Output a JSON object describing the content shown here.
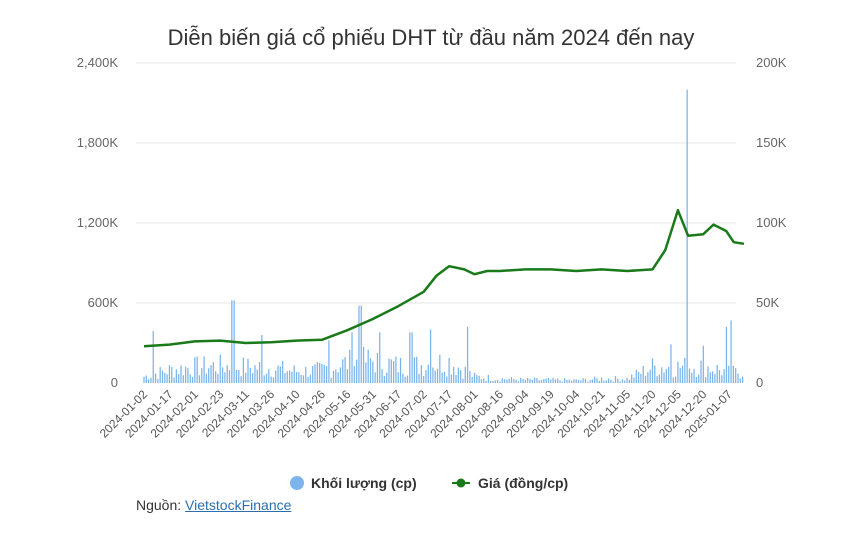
{
  "chart_data": {
    "type": "bar+line",
    "title": "Diễn biến giá cổ phiếu DHT từ đầu năm 2024 đến nay",
    "categories": [
      "2024-01-02",
      "2024-01-17",
      "2024-02-01",
      "2024-02-23",
      "2024-03-11",
      "2024-03-26",
      "2024-04-10",
      "2024-04-26",
      "2024-05-16",
      "2024-05-31",
      "2024-06-17",
      "2024-07-02",
      "2024-07-17",
      "2024-08-01",
      "2024-08-16",
      "2024-09-04",
      "2024-09-19",
      "2024-10-04",
      "2024-10-21",
      "2024-11-05",
      "2024-11-20",
      "2024-12-05",
      "2024-12-20",
      "2025-01-07"
    ],
    "y_left": {
      "ticks": [
        "0",
        "600K",
        "1,200K",
        "1,800K",
        "2,400K"
      ],
      "max": 2400000
    },
    "y_right": {
      "ticks": [
        "0",
        "50K",
        "100K",
        "150K",
        "200K"
      ],
      "max": 200000
    },
    "legend_position": "bottom-center",
    "series": [
      {
        "name": "Khối lượng (cp)",
        "type": "bar",
        "axis": "left",
        "color": "#7cb5ec",
        "anchors": [
          [
            0,
            60000
          ],
          [
            1,
            120000
          ],
          [
            2,
            150000
          ],
          [
            3,
            160000
          ],
          [
            4,
            150000
          ],
          [
            5,
            140000
          ],
          [
            6,
            110000
          ],
          [
            7,
            120000
          ],
          [
            8,
            190000
          ],
          [
            9,
            210000
          ],
          [
            10,
            160000
          ],
          [
            11,
            170000
          ],
          [
            12,
            200000
          ],
          [
            13,
            60000
          ],
          [
            14,
            40000
          ],
          [
            15,
            30000
          ],
          [
            16,
            30000
          ],
          [
            17,
            25000
          ],
          [
            18,
            40000
          ],
          [
            19,
            40000
          ],
          [
            20,
            150000
          ],
          [
            21,
            150000
          ],
          [
            22,
            160000
          ],
          [
            23,
            100000
          ]
        ],
        "spikes": [
          [
            0.4,
            390000
          ],
          [
            3.5,
            620000
          ],
          [
            4.6,
            360000
          ],
          [
            7.3,
            320000
          ],
          [
            8.2,
            380000
          ],
          [
            8.5,
            580000
          ],
          [
            9.3,
            380000
          ],
          [
            10.5,
            380000
          ],
          [
            11.3,
            400000
          ],
          [
            12.7,
            420000
          ],
          [
            20.7,
            290000
          ],
          [
            21.4,
            2200000
          ],
          [
            22.0,
            280000
          ],
          [
            22.9,
            420000
          ],
          [
            23.1,
            470000
          ]
        ]
      },
      {
        "name": "Giá (đồng/cp)",
        "type": "line",
        "axis": "right",
        "color": "#1a7a1a",
        "points": [
          [
            0,
            23000
          ],
          [
            1,
            24000
          ],
          [
            2,
            26000
          ],
          [
            3,
            26500
          ],
          [
            4,
            25000
          ],
          [
            5,
            25500
          ],
          [
            6,
            26500
          ],
          [
            7,
            27000
          ],
          [
            8,
            33000
          ],
          [
            9,
            40000
          ],
          [
            10,
            48000
          ],
          [
            11,
            57000
          ],
          [
            11.5,
            67000
          ],
          [
            12,
            73000
          ],
          [
            12.6,
            71000
          ],
          [
            13,
            68000
          ],
          [
            13.5,
            70000
          ],
          [
            14,
            70000
          ],
          [
            15,
            71000
          ],
          [
            16,
            71000
          ],
          [
            17,
            70000
          ],
          [
            18,
            71000
          ],
          [
            19,
            70000
          ],
          [
            20,
            71000
          ],
          [
            20.5,
            83000
          ],
          [
            21,
            108000
          ],
          [
            21.4,
            92000
          ],
          [
            22,
            93000
          ],
          [
            22.4,
            99000
          ],
          [
            22.9,
            95000
          ],
          [
            23.2,
            88000
          ],
          [
            23.6,
            87000
          ]
        ]
      }
    ]
  },
  "source": {
    "label": "Nguồn:",
    "link_text": "VietstockFinance"
  }
}
